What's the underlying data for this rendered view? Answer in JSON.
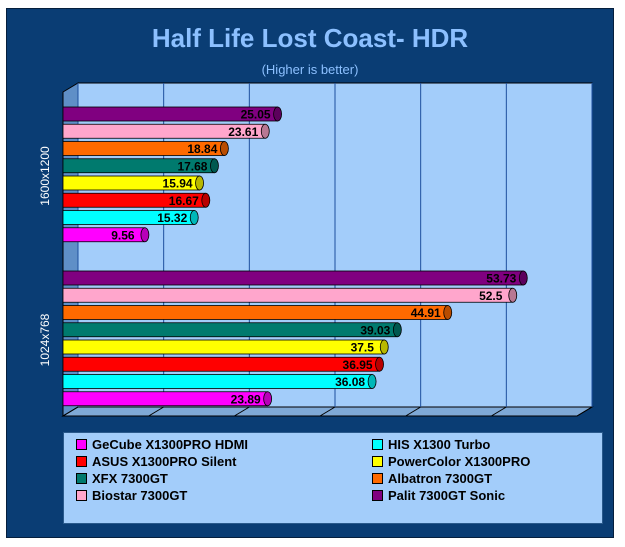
{
  "chart_data": {
    "type": "bar",
    "orientation": "horizontal",
    "title": "Half Life Lost Coast- HDR",
    "subtitle": "(Higher is better)",
    "xlim": [
      0,
      60
    ],
    "grid": true,
    "legend_position": "bottom",
    "groups": [
      "1600x1200",
      "1024x768"
    ],
    "series": [
      {
        "name": "GeCube X1300PRO HDMI",
        "color": "#ff00ff",
        "values": [
          9.56,
          23.89
        ]
      },
      {
        "name": "HIS X1300 Turbo",
        "color": "#00ffff",
        "values": [
          15.32,
          36.08
        ]
      },
      {
        "name": "ASUS X1300PRO Silent",
        "color": "#ff0000",
        "values": [
          16.67,
          36.95
        ]
      },
      {
        "name": "PowerColor X1300PRO",
        "color": "#ffff00",
        "values": [
          15.94,
          37.5
        ]
      },
      {
        "name": "XFX 7300GT",
        "color": "#007a6e",
        "values": [
          17.68,
          39.03
        ]
      },
      {
        "name": "Albatron 7300GT",
        "color": "#ff6a00",
        "values": [
          18.84,
          44.91
        ]
      },
      {
        "name": "Biostar 7300GT",
        "color": "#ffa6cc",
        "values": [
          23.61,
          52.5
        ]
      },
      {
        "name": "Palit 7300GT Sonic",
        "color": "#800080",
        "values": [
          25.05,
          53.73
        ]
      }
    ],
    "value_labels": [
      [
        "9.56",
        "23.89"
      ],
      [
        "15.32",
        "36.08"
      ],
      [
        "16.67",
        "36.95"
      ],
      [
        "15.94",
        "37.5"
      ],
      [
        "17.68",
        "39.03"
      ],
      [
        "18.84",
        "44.91"
      ],
      [
        "23.61",
        "52.5"
      ],
      [
        "25.05",
        "53.73"
      ]
    ]
  }
}
